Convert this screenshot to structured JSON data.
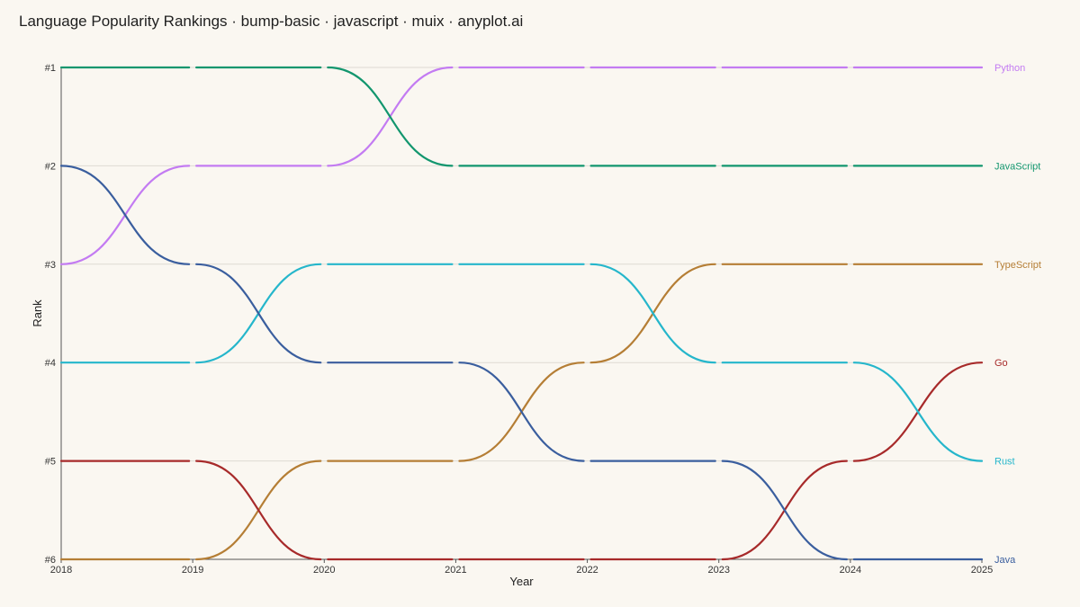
{
  "title": "Language Popularity Rankings · bump-basic · javascript · muix · anyplot.ai",
  "chart_data": {
    "type": "line",
    "subtype": "bump",
    "title": "Language Popularity Rankings · bump-basic · javascript · muix · anyplot.ai",
    "xlabel": "Year",
    "ylabel": "Rank",
    "x": [
      2018,
      2019,
      2020,
      2021,
      2022,
      2023,
      2024,
      2025
    ],
    "xlim": [
      2018,
      2025
    ],
    "ylim": [
      1,
      6
    ],
    "y_inverted": true,
    "y_ticks": [
      "#1",
      "#2",
      "#3",
      "#4",
      "#5",
      "#6"
    ],
    "grid": "horizontal",
    "legend": "labels-at-right-end",
    "series": [
      {
        "name": "Python",
        "color": "#C37BF2",
        "values": [
          3,
          2,
          2,
          1,
          1,
          1,
          1,
          1
        ]
      },
      {
        "name": "JavaScript",
        "color": "#12966E",
        "values": [
          1,
          1,
          1,
          2,
          2,
          2,
          2,
          2
        ]
      },
      {
        "name": "TypeScript",
        "color": "#B57E35",
        "values": [
          6,
          6,
          5,
          5,
          4,
          3,
          3,
          3
        ]
      },
      {
        "name": "Go",
        "color": "#A72A2A",
        "values": [
          5,
          5,
          6,
          6,
          6,
          6,
          5,
          4
        ]
      },
      {
        "name": "Rust",
        "color": "#25B6CB",
        "values": [
          4,
          4,
          3,
          3,
          3,
          4,
          4,
          5
        ]
      },
      {
        "name": "Java",
        "color": "#3A5E9E",
        "values": [
          2,
          3,
          4,
          4,
          5,
          5,
          6,
          6
        ]
      }
    ]
  }
}
